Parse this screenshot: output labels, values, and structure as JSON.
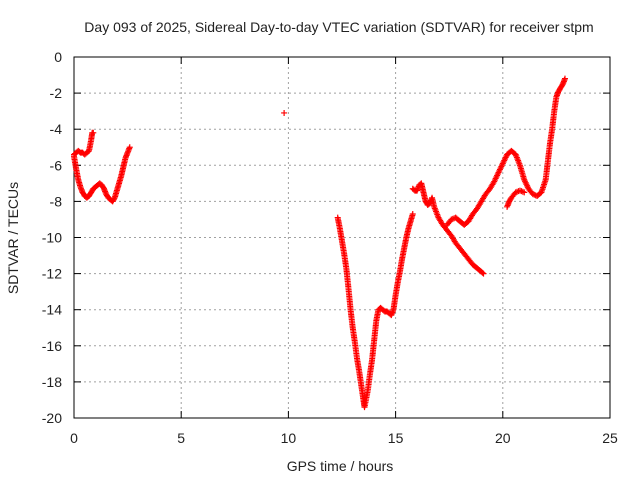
{
  "chart_data": {
    "type": "scatter",
    "title": "Day 093 of 2025, Sidereal Day-to-day VTEC variation (SDTVAR) for receiver stpm",
    "xlabel": "GPS time / hours",
    "ylabel": "SDTVAR / TECUs",
    "xlim": [
      0,
      25
    ],
    "ylim": [
      -20,
      0
    ],
    "xticks": [
      "0",
      "5",
      "10",
      "15",
      "20",
      "25"
    ],
    "yticks": [
      "0",
      "-2",
      "-4",
      "-6",
      "-8",
      "-10",
      "-12",
      "-14",
      "-16",
      "-18",
      "-20"
    ],
    "grid": true,
    "marker": "plus",
    "color": "#ff0000",
    "series": [
      {
        "segments": [
          [
            [
              0.0,
              -5.4
            ],
            [
              0.1,
              -5.3
            ],
            [
              0.2,
              -5.2
            ],
            [
              0.3,
              -5.3
            ],
            [
              0.4,
              -5.3
            ],
            [
              0.5,
              -5.4
            ],
            [
              0.6,
              -5.3
            ],
            [
              0.7,
              -5.2
            ],
            [
              0.8,
              -4.6
            ],
            [
              0.85,
              -4.2
            ],
            [
              0.9,
              -4.2
            ]
          ],
          [
            [
              0.0,
              -5.5
            ],
            [
              0.1,
              -6.2
            ],
            [
              0.2,
              -6.8
            ],
            [
              0.3,
              -7.2
            ],
            [
              0.4,
              -7.5
            ],
            [
              0.5,
              -7.7
            ],
            [
              0.6,
              -7.8
            ],
            [
              0.7,
              -7.7
            ],
            [
              0.8,
              -7.5
            ],
            [
              0.9,
              -7.3
            ],
            [
              1.0,
              -7.2
            ],
            [
              1.1,
              -7.1
            ],
            [
              1.2,
              -7.0
            ],
            [
              1.3,
              -7.1
            ],
            [
              1.4,
              -7.3
            ],
            [
              1.5,
              -7.6
            ],
            [
              1.6,
              -7.8
            ],
            [
              1.7,
              -7.9
            ],
            [
              1.8,
              -8.0
            ],
            [
              1.9,
              -7.8
            ],
            [
              2.0,
              -7.4
            ],
            [
              2.1,
              -7.0
            ],
            [
              2.2,
              -6.6
            ],
            [
              2.3,
              -6.1
            ],
            [
              2.4,
              -5.6
            ],
            [
              2.5,
              -5.3
            ],
            [
              2.6,
              -5.0
            ]
          ],
          [
            [
              9.8,
              -3.1
            ]
          ],
          [
            [
              12.3,
              -8.9
            ],
            [
              12.4,
              -9.5
            ],
            [
              12.5,
              -10.2
            ],
            [
              12.6,
              -10.9
            ],
            [
              12.7,
              -11.7
            ],
            [
              12.8,
              -12.8
            ],
            [
              12.9,
              -14.0
            ],
            [
              13.0,
              -15.0
            ],
            [
              13.1,
              -15.8
            ],
            [
              13.2,
              -16.7
            ],
            [
              13.3,
              -17.4
            ],
            [
              13.4,
              -18.2
            ],
            [
              13.5,
              -19.0
            ],
            [
              13.55,
              -19.4
            ],
            [
              13.7,
              -18.5
            ],
            [
              13.8,
              -17.6
            ],
            [
              13.9,
              -16.8
            ],
            [
              14.0,
              -15.7
            ],
            [
              14.1,
              -14.6
            ],
            [
              14.2,
              -14.0
            ],
            [
              14.3,
              -13.9
            ],
            [
              14.4,
              -14.0
            ],
            [
              14.5,
              -14.1
            ],
            [
              14.6,
              -14.1
            ],
            [
              14.7,
              -14.2
            ],
            [
              14.8,
              -14.3
            ],
            [
              14.9,
              -14.0
            ],
            [
              15.0,
              -13.2
            ],
            [
              15.1,
              -12.5
            ],
            [
              15.2,
              -11.9
            ],
            [
              15.3,
              -11.2
            ],
            [
              15.4,
              -10.6
            ],
            [
              15.5,
              -10.0
            ],
            [
              15.6,
              -9.5
            ],
            [
              15.7,
              -9.1
            ],
            [
              15.8,
              -8.7
            ]
          ],
          [
            [
              15.8,
              -7.3
            ],
            [
              15.9,
              -7.4
            ],
            [
              16.0,
              -7.4
            ],
            [
              16.1,
              -7.1
            ],
            [
              16.2,
              -7.0
            ],
            [
              16.3,
              -7.5
            ],
            [
              16.4,
              -8.0
            ],
            [
              16.5,
              -8.2
            ],
            [
              16.6,
              -8.1
            ],
            [
              16.7,
              -7.8
            ],
            [
              16.8,
              -8.3
            ],
            [
              17.0,
              -8.9
            ],
            [
              17.2,
              -9.3
            ],
            [
              17.4,
              -9.6
            ],
            [
              17.6,
              -9.9
            ],
            [
              17.8,
              -10.3
            ],
            [
              18.0,
              -10.6
            ],
            [
              18.2,
              -10.9
            ],
            [
              18.4,
              -11.2
            ],
            [
              18.6,
              -11.5
            ],
            [
              18.8,
              -11.7
            ],
            [
              19.0,
              -11.9
            ],
            [
              19.1,
              -12.0
            ]
          ],
          [
            [
              17.4,
              -9.3
            ],
            [
              17.6,
              -9.0
            ],
            [
              17.8,
              -8.9
            ],
            [
              18.0,
              -9.1
            ],
            [
              18.2,
              -9.3
            ],
            [
              18.4,
              -9.1
            ],
            [
              18.6,
              -8.7
            ],
            [
              18.8,
              -8.4
            ],
            [
              19.0,
              -8.0
            ],
            [
              19.2,
              -7.6
            ],
            [
              19.4,
              -7.3
            ],
            [
              19.6,
              -6.9
            ],
            [
              19.8,
              -6.4
            ],
            [
              20.0,
              -5.9
            ],
            [
              20.2,
              -5.4
            ],
            [
              20.4,
              -5.2
            ],
            [
              20.6,
              -5.4
            ],
            [
              20.8,
              -6.0
            ],
            [
              21.0,
              -6.8
            ],
            [
              21.2,
              -7.3
            ],
            [
              21.4,
              -7.6
            ],
            [
              21.6,
              -7.7
            ],
            [
              21.8,
              -7.5
            ],
            [
              22.0,
              -6.8
            ],
            [
              22.1,
              -5.8
            ],
            [
              22.2,
              -4.8
            ],
            [
              22.3,
              -4.0
            ],
            [
              22.4,
              -3.0
            ],
            [
              22.5,
              -2.2
            ],
            [
              22.6,
              -1.9
            ],
            [
              22.7,
              -1.7
            ],
            [
              22.8,
              -1.5
            ],
            [
              22.9,
              -1.2
            ]
          ],
          [
            [
              20.2,
              -8.3
            ],
            [
              20.3,
              -8.0
            ],
            [
              20.4,
              -7.8
            ],
            [
              20.6,
              -7.5
            ],
            [
              20.8,
              -7.4
            ],
            [
              21.0,
              -7.5
            ]
          ]
        ]
      }
    ]
  }
}
